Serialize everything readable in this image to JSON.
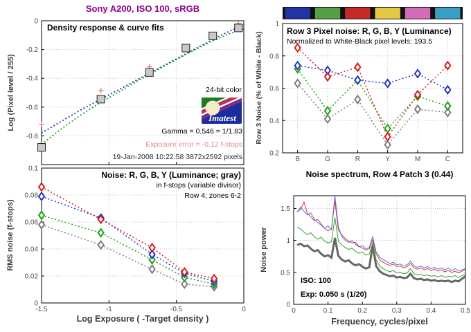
{
  "header": {
    "title": "Sony A200, ISO 100, sRGB",
    "color": "#8B008B"
  },
  "colors": {
    "red": "#D42020",
    "green": "#17A317",
    "blue": "#2431C8",
    "gray": "#7d7d7d",
    "pink": "#E08A8A",
    "square_fill": "#c9c9c9",
    "spec_red": "#CC3B3B",
    "spec_green": "#2FA32F",
    "spec_blue": "#6868D8",
    "spec_gray": "#666666"
  },
  "panel1": {
    "title": "Density response & curve fits",
    "ylabel": "Log (Pixel level / 255)",
    "bit_label": "24-bit color",
    "gamma_text": "Gamma = 0.546 = 1/1.83",
    "exposure_text": "Exposure error = -0.12 f-stops",
    "date_text": "19-Jan-2008 10:22:58   3872x2592 pixels",
    "logo_text": "Imatest"
  },
  "panel2": {
    "title": "Row 3 Pixel noise: R, G, B, Y (Luminance)",
    "subtitle": "Normalized to White-Black pixel levels: 193.5",
    "ylabel": "Row 3 Noise (% of White - Black)",
    "colorbar": [
      "#2233A6",
      "#55A046",
      "#C52A28",
      "#E3C845",
      "#D56BB7",
      "#38A0C4"
    ],
    "colorbar_bg": "#111111"
  },
  "panel3": {
    "title": "Noise: R, G, B, Y (Luminance; gray)",
    "subtitle1": "in f-stops (variable divisor)",
    "subtitle2": "Row 4; zones 6-2",
    "ylabel": "RMS noise (f-stops)",
    "xlabel": "Log Exposure ( -Target density )"
  },
  "panel4": {
    "title": "Noise spectrum, Row 4 Patch 3 (0.44)",
    "ylabel": "Noise power",
    "xlabel": "Frequency, cycles/pixel",
    "iso_text": "ISO:   100",
    "exp_text": "Exp:   0.050 s  (1/20)"
  },
  "chart_data": [
    {
      "id": "density",
      "type": "scatter",
      "title": "Density response & curve fits",
      "xlabel": "",
      "ylabel": "Log (Pixel level / 255)",
      "xlim": [
        -1.5,
        0
      ],
      "ylim": [
        -1,
        0
      ],
      "xticks": [
        -1,
        -0.5
      ],
      "xtick_labels": [
        "",
        ""
      ],
      "yticks": [
        0,
        -0.2,
        -0.4,
        -0.6,
        -0.8
      ],
      "ytick_labels": [
        "0",
        "-0.2",
        "-0.4",
        "-0.6",
        "-0.8"
      ],
      "series": [
        {
          "name": "blue-fit",
          "color": "#2431C8",
          "line": "dotted",
          "width": 1.8,
          "marker": "none",
          "x": [
            -1.5,
            -1.4,
            -1.3,
            -1.2,
            -1.1,
            -1.0,
            -0.9,
            -0.8,
            -0.7,
            -0.6,
            -0.5,
            -0.4,
            -0.3,
            -0.2,
            -0.1,
            0
          ],
          "y": [
            -0.78,
            -0.725,
            -0.67,
            -0.615,
            -0.565,
            -0.515,
            -0.465,
            -0.415,
            -0.365,
            -0.315,
            -0.265,
            -0.215,
            -0.165,
            -0.115,
            -0.07,
            -0.03
          ]
        },
        {
          "name": "green-fit",
          "color": "#17A317",
          "line": "dotted",
          "width": 1.8,
          "marker": "none",
          "x": [
            -1.5,
            -1.4,
            -1.3,
            -1.2,
            -1.1,
            -1.0,
            -0.9,
            -0.8,
            -0.7,
            -0.6,
            -0.5,
            -0.4,
            -0.3,
            -0.2,
            -0.1,
            0
          ],
          "y": [
            -0.86,
            -0.785,
            -0.715,
            -0.65,
            -0.59,
            -0.535,
            -0.48,
            -0.425,
            -0.372,
            -0.32,
            -0.27,
            -0.22,
            -0.172,
            -0.127,
            -0.088,
            -0.056
          ]
        },
        {
          "name": "exposure-plus",
          "color": "#E08A8A",
          "line": "none",
          "marker": "plus",
          "x": [
            -1.5,
            -1.06,
            -0.7,
            -0.04
          ],
          "y": [
            -0.72,
            -0.485,
            -0.32,
            -0.02
          ]
        },
        {
          "name": "patch-density",
          "color": "#222222",
          "line": "none",
          "marker": "square",
          "x": [
            -1.5,
            -1.06,
            -0.7,
            -0.43,
            -0.23,
            -0.04
          ],
          "y": [
            -0.88,
            -0.545,
            -0.36,
            -0.19,
            -0.105,
            -0.05
          ]
        }
      ]
    },
    {
      "id": "row3-pixel-noise",
      "type": "line",
      "title": "Row 3 Pixel noise: R, G, B, Y (Luminance)",
      "categories": [
        "B",
        "G",
        "R",
        "Y",
        "M",
        "C"
      ],
      "xlabel": "",
      "ylabel": "Row 3 Noise (% of White - Black)",
      "xlim": [
        -0.5,
        5.5
      ],
      "ylim": [
        0.2,
        1.0
      ],
      "xticks": [
        0,
        1,
        2,
        3,
        4,
        5
      ],
      "xtick_labels": [
        "B",
        "G",
        "R",
        "Y",
        "M",
        "C"
      ],
      "yticks": [
        0.2,
        0.4,
        0.6,
        0.8,
        1
      ],
      "ytick_labels": [
        "0.2",
        "0.4",
        "0.6",
        "0.8",
        "1"
      ],
      "series": [
        {
          "name": "Y-luminance",
          "color": "#7d7d7d",
          "line": "dotted",
          "width": 1.5,
          "marker": "diamond",
          "x": [
            0,
            1,
            2,
            3,
            4,
            5
          ],
          "y": [
            0.63,
            0.41,
            0.53,
            0.25,
            0.47,
            0.45
          ]
        },
        {
          "name": "G",
          "color": "#17A317",
          "line": "dotted",
          "width": 1.5,
          "marker": "diamond",
          "x": [
            0,
            1,
            2,
            3,
            4,
            5
          ],
          "y": [
            0.72,
            0.46,
            0.65,
            0.35,
            0.55,
            0.49
          ]
        },
        {
          "name": "B",
          "color": "#2431C8",
          "line": "dotted",
          "width": 1.5,
          "marker": "diamond",
          "x": [
            0,
            1,
            2,
            3,
            4,
            5
          ],
          "y": [
            0.74,
            0.71,
            0.65,
            0.63,
            0.69,
            0.59
          ]
        },
        {
          "name": "R",
          "color": "#D42020",
          "line": "dotted",
          "width": 1.5,
          "marker": "diamond",
          "x": [
            0,
            1,
            2,
            3,
            4,
            5
          ],
          "y": [
            0.85,
            0.67,
            0.73,
            0.3,
            0.56,
            0.74
          ]
        }
      ]
    },
    {
      "id": "rms-noise",
      "type": "line",
      "title": "Noise: R, G, B, Y (Luminance; gray)",
      "xlabel": "Log Exposure ( -Target density )",
      "ylabel": "RMS noise (f-stops)",
      "xlim": [
        -1.5,
        0
      ],
      "ylim": [
        0,
        0.1
      ],
      "xticks": [
        -1.5,
        -1,
        -0.5,
        0
      ],
      "xtick_labels": [
        "-1.5",
        "-1",
        "-0.5",
        "0"
      ],
      "yticks": [
        0,
        0.02,
        0.04,
        0.06,
        0.08,
        0.1
      ],
      "ytick_labels": [
        "0",
        "0.02",
        "0.04",
        "0.06",
        "0.08",
        "0.1"
      ],
      "series": [
        {
          "name": "Y-luminance",
          "color": "#7d7d7d",
          "line": "dotted",
          "width": 1.5,
          "marker": "diamond",
          "x": [
            -1.5,
            -1.06,
            -0.68,
            -0.44,
            -0.22
          ],
          "y": [
            0.058,
            0.043,
            0.025,
            0.014,
            0.012
          ]
        },
        {
          "name": "G",
          "color": "#17A317",
          "line": "dotted",
          "width": 1.5,
          "marker": "diamond",
          "x": [
            -1.5,
            -1.06,
            -0.68,
            -0.44,
            -0.22
          ],
          "y": [
            0.065,
            0.052,
            0.032,
            0.019,
            0.014
          ]
        },
        {
          "name": "B",
          "color": "#2431C8",
          "line": "dotted",
          "width": 1.5,
          "marker": "diamond",
          "x": [
            -1.5,
            -1.06,
            -0.68,
            -0.44,
            -0.22
          ],
          "y": [
            0.079,
            0.063,
            0.036,
            0.022,
            0.016
          ]
        },
        {
          "name": "R",
          "color": "#D42020",
          "line": "dotted",
          "width": 1.5,
          "marker": "diamond",
          "x": [
            -1.5,
            -1.06,
            -0.68,
            -0.44,
            -0.22
          ],
          "y": [
            0.086,
            0.062,
            0.041,
            0.023,
            0.018
          ]
        }
      ]
    },
    {
      "id": "noise-spectrum",
      "type": "line",
      "title": "Noise spectrum, Row 4 Patch 3 (0.44)",
      "xlabel": "Frequency, cycles/pixel",
      "ylabel": "Noise power",
      "xlim": [
        0,
        0.5
      ],
      "ylim": [
        0,
        1.7
      ],
      "xticks": [
        0,
        0.1,
        0.2,
        0.3,
        0.4,
        0.5
      ],
      "xtick_labels": [
        "0",
        "0.1",
        "0.2",
        "0.3",
        "0.4",
        "0.5"
      ],
      "yticks": [
        0,
        0.5,
        1,
        1.5
      ],
      "ytick_labels": [
        "0",
        "0.5",
        "1",
        "1.5"
      ],
      "series": [
        {
          "name": "gray-luminance",
          "color": "#666666",
          "line": "solid",
          "width": 3,
          "marker": "none",
          "x": [
            0.01,
            0.02,
            0.03,
            0.04,
            0.05,
            0.06,
            0.07,
            0.08,
            0.09,
            0.1,
            0.11,
            0.12,
            0.13,
            0.14,
            0.15,
            0.16,
            0.17,
            0.18,
            0.19,
            0.2,
            0.21,
            0.22,
            0.23,
            0.24,
            0.25,
            0.26,
            0.27,
            0.28,
            0.29,
            0.3,
            0.31,
            0.32,
            0.33,
            0.34,
            0.35,
            0.36,
            0.37,
            0.38,
            0.39,
            0.4,
            0.41,
            0.42,
            0.43,
            0.44,
            0.45,
            0.46,
            0.47,
            0.48,
            0.49,
            0.5
          ],
          "y": [
            0.93,
            0.95,
            0.91,
            0.92,
            0.87,
            0.83,
            0.85,
            0.79,
            0.75,
            0.77,
            0.73,
            1.04,
            0.76,
            0.7,
            0.67,
            0.69,
            0.64,
            0.61,
            0.63,
            0.59,
            0.56,
            0.58,
            0.92,
            0.6,
            0.52,
            0.48,
            0.46,
            0.44,
            0.45,
            0.42,
            0.43,
            0.41,
            0.42,
            0.48,
            0.41,
            0.39,
            0.4,
            0.38,
            0.39,
            0.37,
            0.38,
            0.36,
            0.37,
            0.36,
            0.37,
            0.35,
            0.37,
            0.36,
            0.4,
            0.44
          ]
        },
        {
          "name": "green",
          "color": "#2FA32F",
          "line": "solid",
          "width": 1,
          "marker": "none",
          "x": [
            0.01,
            0.02,
            0.03,
            0.04,
            0.05,
            0.06,
            0.07,
            0.08,
            0.09,
            0.1,
            0.11,
            0.12,
            0.13,
            0.14,
            0.15,
            0.16,
            0.17,
            0.18,
            0.19,
            0.2,
            0.21,
            0.22,
            0.23,
            0.24,
            0.25,
            0.26,
            0.27,
            0.28,
            0.29,
            0.3,
            0.31,
            0.32,
            0.33,
            0.34,
            0.35,
            0.36,
            0.37,
            0.38,
            0.39,
            0.4,
            0.41,
            0.42,
            0.43,
            0.44,
            0.45,
            0.46,
            0.47,
            0.48,
            0.49,
            0.5
          ],
          "y": [
            1.21,
            1.18,
            1.13,
            1.09,
            1.12,
            1.06,
            1.02,
            1.05,
            0.99,
            0.96,
            0.98,
            1.36,
            0.99,
            0.93,
            0.89,
            0.86,
            0.88,
            0.83,
            0.8,
            0.82,
            0.77,
            0.79,
            0.96,
            0.7,
            0.6,
            0.56,
            0.53,
            0.51,
            0.53,
            0.49,
            0.5,
            0.48,
            0.49,
            0.56,
            0.48,
            0.46,
            0.47,
            0.45,
            0.46,
            0.44,
            0.45,
            0.43,
            0.45,
            0.42,
            0.44,
            0.43,
            0.45,
            0.42,
            0.45,
            0.47
          ]
        },
        {
          "name": "red",
          "color": "#CC3B3B",
          "line": "solid",
          "width": 1,
          "marker": "none",
          "x": [
            0.01,
            0.02,
            0.03,
            0.04,
            0.05,
            0.06,
            0.07,
            0.08,
            0.09,
            0.1,
            0.11,
            0.12,
            0.13,
            0.14,
            0.15,
            0.16,
            0.17,
            0.18,
            0.19,
            0.2,
            0.21,
            0.22,
            0.23,
            0.24,
            0.25,
            0.26,
            0.27,
            0.28,
            0.29,
            0.3,
            0.31,
            0.32,
            0.33,
            0.34,
            0.35,
            0.36,
            0.37,
            0.38,
            0.39,
            0.4,
            0.41,
            0.42,
            0.43,
            0.44,
            0.45,
            0.46,
            0.47,
            0.48,
            0.49,
            0.5
          ],
          "y": [
            1.46,
            1.48,
            1.6,
            1.42,
            1.37,
            1.31,
            1.33,
            1.26,
            1.19,
            1.15,
            1.18,
            1.62,
            1.16,
            1.09,
            1.03,
            0.99,
            0.96,
            0.97,
            0.91,
            0.88,
            0.85,
            0.87,
            1.01,
            0.79,
            0.7,
            0.66,
            0.63,
            0.61,
            0.63,
            0.59,
            0.6,
            0.57,
            0.59,
            0.64,
            0.57,
            0.55,
            0.57,
            0.54,
            0.56,
            0.53,
            0.55,
            0.52,
            0.54,
            0.51,
            0.53,
            0.5,
            0.52,
            0.49,
            0.52,
            0.55
          ]
        },
        {
          "name": "blue",
          "color": "#6868D8",
          "line": "solid",
          "width": 1,
          "marker": "none",
          "x": [
            0.01,
            0.02,
            0.03,
            0.04,
            0.05,
            0.06,
            0.07,
            0.08,
            0.09,
            0.1,
            0.11,
            0.12,
            0.13,
            0.14,
            0.15,
            0.16,
            0.17,
            0.18,
            0.19,
            0.2,
            0.21,
            0.22,
            0.23,
            0.24,
            0.25,
            0.26,
            0.27,
            0.28,
            0.29,
            0.3,
            0.31,
            0.32,
            0.33,
            0.34,
            0.35,
            0.36,
            0.37,
            0.38,
            0.39,
            0.4,
            0.41,
            0.42,
            0.43,
            0.44,
            0.45,
            0.46,
            0.47,
            0.48,
            0.49,
            0.5
          ],
          "y": [
            1.44,
            1.52,
            1.46,
            1.4,
            1.43,
            1.33,
            1.28,
            1.24,
            1.19,
            1.23,
            1.17,
            1.7,
            1.22,
            1.06,
            1.0,
            0.97,
            1.0,
            0.94,
            0.9,
            0.92,
            0.87,
            0.89,
            1.06,
            0.82,
            0.74,
            0.7,
            0.67,
            0.64,
            0.66,
            0.62,
            0.63,
            0.6,
            0.62,
            0.68,
            0.6,
            0.58,
            0.6,
            0.57,
            0.59,
            0.56,
            0.58,
            0.55,
            0.57,
            0.54,
            0.57,
            0.53,
            0.56,
            0.52,
            0.54,
            0.56
          ]
        }
      ]
    }
  ]
}
